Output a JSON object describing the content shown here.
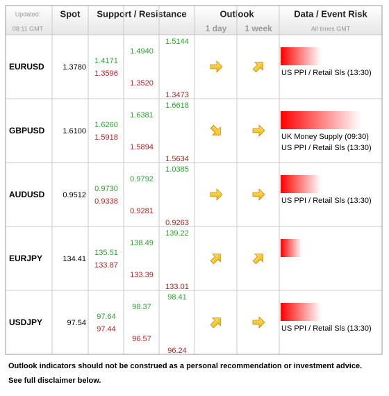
{
  "header": {
    "updated_label": "Updated:",
    "updated_time": "08:11 GMT",
    "spot": "Spot",
    "support_resistance": "Support / Resistance",
    "outlook": "Outlook",
    "outlook_1day": "1 day",
    "outlook_1week": "1 week",
    "event_risk": "Data / Event Risk",
    "times_note": "All times GMT"
  },
  "rows": [
    {
      "pair": "EURUSD",
      "spot": "1.3780",
      "levels": [
        {
          "resistance": "1.4171",
          "support": "1.3596"
        },
        {
          "resistance": "1.4940",
          "support": "1.3520"
        },
        {
          "resistance": "1.5144",
          "support": "1.3473"
        }
      ],
      "events": [
        "US PPI / Retail Sls (13:30)"
      ]
    },
    {
      "pair": "GBPUSD",
      "spot": "1.6100",
      "levels": [
        {
          "resistance": "1.6260",
          "support": "1.5918"
        },
        {
          "resistance": "1.6381",
          "support": "1.5894"
        },
        {
          "resistance": "1.6618",
          "support": "1.5634"
        }
      ],
      "events": [
        "UK Money Supply (09:30)",
        "US PPI / Retail Sls (13:30)"
      ]
    },
    {
      "pair": "AUDUSD",
      "spot": "0.9512",
      "levels": [
        {
          "resistance": "0.9730",
          "support": "0.9338"
        },
        {
          "resistance": "0.9792",
          "support": "0.9281"
        },
        {
          "resistance": "1.0385",
          "support": "0.9263"
        }
      ],
      "events": [
        "US PPI / Retail Sls (13:30)"
      ]
    },
    {
      "pair": "EURJPY",
      "spot": "134.41",
      "levels": [
        {
          "resistance": "135.51",
          "support": "133.87"
        },
        {
          "resistance": "138.49",
          "support": "133.39"
        },
        {
          "resistance": "139.22",
          "support": "133.01"
        }
      ],
      "events": []
    },
    {
      "pair": "USDJPY",
      "spot": "97.54",
      "levels": [
        {
          "resistance": "97.64",
          "support": "97.44"
        },
        {
          "resistance": "98.37",
          "support": "96.57"
        },
        {
          "resistance": "98.41",
          "support": "96.24"
        }
      ],
      "events": [
        "US PPI / Retail Sls (13:30)"
      ]
    }
  ],
  "footer": [
    "Outlook indicators should not be construed as a personal recommendation or investment advice.",
    "See full disclaimer below."
  ]
}
